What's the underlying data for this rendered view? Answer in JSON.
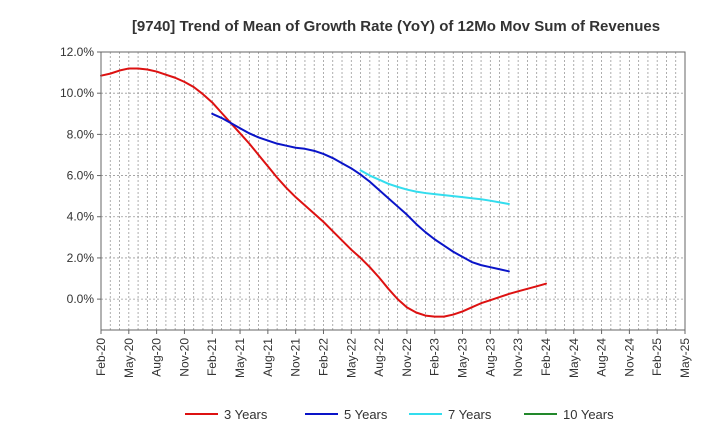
{
  "chart_data": {
    "type": "line",
    "title": "[9740]  Trend of Mean of Growth Rate (YoY) of 12Mo Mov Sum of Revenues",
    "xlabel": "",
    "ylabel": "",
    "ylim": [
      -1.5,
      12.0
    ],
    "yticks": [
      0,
      2,
      4,
      6,
      8,
      10,
      12
    ],
    "ytick_labels": [
      "0.0%",
      "2.0%",
      "4.0%",
      "6.0%",
      "8.0%",
      "10.0%",
      "12.0%"
    ],
    "x_start": "Feb-20",
    "x_end": "May-25",
    "xtick_labels": [
      "Feb-20",
      "May-20",
      "Aug-20",
      "Nov-20",
      "Feb-21",
      "May-21",
      "Aug-21",
      "Nov-21",
      "Feb-22",
      "May-22",
      "Aug-22",
      "Nov-22",
      "Feb-23",
      "May-23",
      "Aug-23",
      "Nov-23",
      "Feb-24",
      "May-24",
      "Aug-24",
      "Nov-24",
      "Feb-25",
      "May-25"
    ],
    "grid": true,
    "legend_position": "bottom",
    "series": [
      {
        "name": "3 Years",
        "color": "#dd1111",
        "points": [
          [
            0,
            10.85
          ],
          [
            1,
            10.95
          ],
          [
            2,
            11.1
          ],
          [
            3,
            11.2
          ],
          [
            4,
            11.2
          ],
          [
            5,
            11.15
          ],
          [
            6,
            11.05
          ],
          [
            7,
            10.9
          ],
          [
            8,
            10.75
          ],
          [
            9,
            10.55
          ],
          [
            10,
            10.3
          ],
          [
            11,
            9.95
          ],
          [
            12,
            9.55
          ],
          [
            13,
            9.05
          ],
          [
            14,
            8.55
          ],
          [
            15,
            8.05
          ],
          [
            16,
            7.55
          ],
          [
            17,
            7.0
          ],
          [
            18,
            6.45
          ],
          [
            19,
            5.9
          ],
          [
            20,
            5.4
          ],
          [
            21,
            4.95
          ],
          [
            22,
            4.55
          ],
          [
            23,
            4.15
          ],
          [
            24,
            3.75
          ],
          [
            25,
            3.3
          ],
          [
            26,
            2.85
          ],
          [
            27,
            2.4
          ],
          [
            28,
            2.0
          ],
          [
            29,
            1.55
          ],
          [
            30,
            1.05
          ],
          [
            31,
            0.5
          ],
          [
            32,
            0.0
          ],
          [
            33,
            -0.4
          ],
          [
            34,
            -0.65
          ],
          [
            35,
            -0.8
          ],
          [
            36,
            -0.85
          ],
          [
            37,
            -0.85
          ],
          [
            38,
            -0.75
          ],
          [
            39,
            -0.6
          ],
          [
            40,
            -0.4
          ],
          [
            41,
            -0.2
          ],
          [
            42,
            -0.05
          ],
          [
            43,
            0.1
          ],
          [
            44,
            0.25
          ],
          [
            45,
            0.38
          ],
          [
            46,
            0.5
          ],
          [
            47,
            0.62
          ],
          [
            48,
            0.75
          ]
        ]
      },
      {
        "name": "5 Years",
        "color": "#0a14c8",
        "points": [
          [
            12,
            9.0
          ],
          [
            13,
            8.8
          ],
          [
            14,
            8.55
          ],
          [
            15,
            8.3
          ],
          [
            16,
            8.05
          ],
          [
            17,
            7.85
          ],
          [
            18,
            7.7
          ],
          [
            19,
            7.55
          ],
          [
            20,
            7.45
          ],
          [
            21,
            7.35
          ],
          [
            22,
            7.3
          ],
          [
            23,
            7.2
          ],
          [
            24,
            7.05
          ],
          [
            25,
            6.85
          ],
          [
            26,
            6.6
          ],
          [
            27,
            6.35
          ],
          [
            28,
            6.05
          ],
          [
            29,
            5.7
          ],
          [
            30,
            5.3
          ],
          [
            31,
            4.9
          ],
          [
            32,
            4.5
          ],
          [
            33,
            4.1
          ],
          [
            34,
            3.65
          ],
          [
            35,
            3.25
          ],
          [
            36,
            2.9
          ],
          [
            37,
            2.6
          ],
          [
            38,
            2.3
          ],
          [
            39,
            2.05
          ],
          [
            40,
            1.8
          ],
          [
            41,
            1.65
          ],
          [
            42,
            1.55
          ],
          [
            43,
            1.45
          ],
          [
            44,
            1.35
          ]
        ]
      },
      {
        "name": "7 Years",
        "color": "#33ddee",
        "points": [
          [
            28,
            6.25
          ],
          [
            29,
            6.0
          ],
          [
            30,
            5.8
          ],
          [
            31,
            5.6
          ],
          [
            32,
            5.45
          ],
          [
            33,
            5.32
          ],
          [
            34,
            5.22
          ],
          [
            35,
            5.15
          ],
          [
            36,
            5.1
          ],
          [
            37,
            5.05
          ],
          [
            38,
            5.0
          ],
          [
            39,
            4.95
          ],
          [
            40,
            4.9
          ],
          [
            41,
            4.85
          ],
          [
            42,
            4.78
          ],
          [
            43,
            4.7
          ],
          [
            44,
            4.62
          ]
        ]
      },
      {
        "name": "10 Years",
        "color": "#22882b",
        "points": []
      }
    ]
  }
}
